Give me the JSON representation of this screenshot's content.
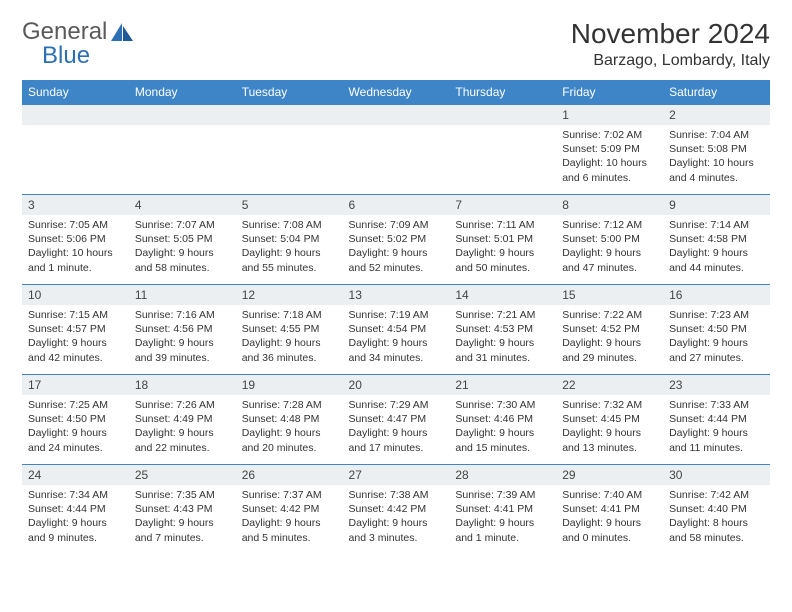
{
  "logo": {
    "general": "General",
    "blue": "Blue"
  },
  "title": "November 2024",
  "location": "Barzago, Lombardy, Italy",
  "colors": {
    "header_bg": "#3d85c6",
    "header_text": "#ffffff",
    "daynum_bg": "#eceff1",
    "border": "#3d85c6",
    "logo_gray": "#5a5a5a",
    "logo_blue": "#2c6fb5"
  },
  "weekdays": [
    "Sunday",
    "Monday",
    "Tuesday",
    "Wednesday",
    "Thursday",
    "Friday",
    "Saturday"
  ],
  "weeks": [
    [
      {
        "blank": true
      },
      {
        "blank": true
      },
      {
        "blank": true
      },
      {
        "blank": true
      },
      {
        "blank": true
      },
      {
        "n": "1",
        "sr": "Sunrise: 7:02 AM",
        "ss": "Sunset: 5:09 PM",
        "dl": "Daylight: 10 hours and 6 minutes."
      },
      {
        "n": "2",
        "sr": "Sunrise: 7:04 AM",
        "ss": "Sunset: 5:08 PM",
        "dl": "Daylight: 10 hours and 4 minutes."
      }
    ],
    [
      {
        "n": "3",
        "sr": "Sunrise: 7:05 AM",
        "ss": "Sunset: 5:06 PM",
        "dl": "Daylight: 10 hours and 1 minute."
      },
      {
        "n": "4",
        "sr": "Sunrise: 7:07 AM",
        "ss": "Sunset: 5:05 PM",
        "dl": "Daylight: 9 hours and 58 minutes."
      },
      {
        "n": "5",
        "sr": "Sunrise: 7:08 AM",
        "ss": "Sunset: 5:04 PM",
        "dl": "Daylight: 9 hours and 55 minutes."
      },
      {
        "n": "6",
        "sr": "Sunrise: 7:09 AM",
        "ss": "Sunset: 5:02 PM",
        "dl": "Daylight: 9 hours and 52 minutes."
      },
      {
        "n": "7",
        "sr": "Sunrise: 7:11 AM",
        "ss": "Sunset: 5:01 PM",
        "dl": "Daylight: 9 hours and 50 minutes."
      },
      {
        "n": "8",
        "sr": "Sunrise: 7:12 AM",
        "ss": "Sunset: 5:00 PM",
        "dl": "Daylight: 9 hours and 47 minutes."
      },
      {
        "n": "9",
        "sr": "Sunrise: 7:14 AM",
        "ss": "Sunset: 4:58 PM",
        "dl": "Daylight: 9 hours and 44 minutes."
      }
    ],
    [
      {
        "n": "10",
        "sr": "Sunrise: 7:15 AM",
        "ss": "Sunset: 4:57 PM",
        "dl": "Daylight: 9 hours and 42 minutes."
      },
      {
        "n": "11",
        "sr": "Sunrise: 7:16 AM",
        "ss": "Sunset: 4:56 PM",
        "dl": "Daylight: 9 hours and 39 minutes."
      },
      {
        "n": "12",
        "sr": "Sunrise: 7:18 AM",
        "ss": "Sunset: 4:55 PM",
        "dl": "Daylight: 9 hours and 36 minutes."
      },
      {
        "n": "13",
        "sr": "Sunrise: 7:19 AM",
        "ss": "Sunset: 4:54 PM",
        "dl": "Daylight: 9 hours and 34 minutes."
      },
      {
        "n": "14",
        "sr": "Sunrise: 7:21 AM",
        "ss": "Sunset: 4:53 PM",
        "dl": "Daylight: 9 hours and 31 minutes."
      },
      {
        "n": "15",
        "sr": "Sunrise: 7:22 AM",
        "ss": "Sunset: 4:52 PM",
        "dl": "Daylight: 9 hours and 29 minutes."
      },
      {
        "n": "16",
        "sr": "Sunrise: 7:23 AM",
        "ss": "Sunset: 4:50 PM",
        "dl": "Daylight: 9 hours and 27 minutes."
      }
    ],
    [
      {
        "n": "17",
        "sr": "Sunrise: 7:25 AM",
        "ss": "Sunset: 4:50 PM",
        "dl": "Daylight: 9 hours and 24 minutes."
      },
      {
        "n": "18",
        "sr": "Sunrise: 7:26 AM",
        "ss": "Sunset: 4:49 PM",
        "dl": "Daylight: 9 hours and 22 minutes."
      },
      {
        "n": "19",
        "sr": "Sunrise: 7:28 AM",
        "ss": "Sunset: 4:48 PM",
        "dl": "Daylight: 9 hours and 20 minutes."
      },
      {
        "n": "20",
        "sr": "Sunrise: 7:29 AM",
        "ss": "Sunset: 4:47 PM",
        "dl": "Daylight: 9 hours and 17 minutes."
      },
      {
        "n": "21",
        "sr": "Sunrise: 7:30 AM",
        "ss": "Sunset: 4:46 PM",
        "dl": "Daylight: 9 hours and 15 minutes."
      },
      {
        "n": "22",
        "sr": "Sunrise: 7:32 AM",
        "ss": "Sunset: 4:45 PM",
        "dl": "Daylight: 9 hours and 13 minutes."
      },
      {
        "n": "23",
        "sr": "Sunrise: 7:33 AM",
        "ss": "Sunset: 4:44 PM",
        "dl": "Daylight: 9 hours and 11 minutes."
      }
    ],
    [
      {
        "n": "24",
        "sr": "Sunrise: 7:34 AM",
        "ss": "Sunset: 4:44 PM",
        "dl": "Daylight: 9 hours and 9 minutes."
      },
      {
        "n": "25",
        "sr": "Sunrise: 7:35 AM",
        "ss": "Sunset: 4:43 PM",
        "dl": "Daylight: 9 hours and 7 minutes."
      },
      {
        "n": "26",
        "sr": "Sunrise: 7:37 AM",
        "ss": "Sunset: 4:42 PM",
        "dl": "Daylight: 9 hours and 5 minutes."
      },
      {
        "n": "27",
        "sr": "Sunrise: 7:38 AM",
        "ss": "Sunset: 4:42 PM",
        "dl": "Daylight: 9 hours and 3 minutes."
      },
      {
        "n": "28",
        "sr": "Sunrise: 7:39 AM",
        "ss": "Sunset: 4:41 PM",
        "dl": "Daylight: 9 hours and 1 minute."
      },
      {
        "n": "29",
        "sr": "Sunrise: 7:40 AM",
        "ss": "Sunset: 4:41 PM",
        "dl": "Daylight: 9 hours and 0 minutes."
      },
      {
        "n": "30",
        "sr": "Sunrise: 7:42 AM",
        "ss": "Sunset: 4:40 PM",
        "dl": "Daylight: 8 hours and 58 minutes."
      }
    ]
  ]
}
